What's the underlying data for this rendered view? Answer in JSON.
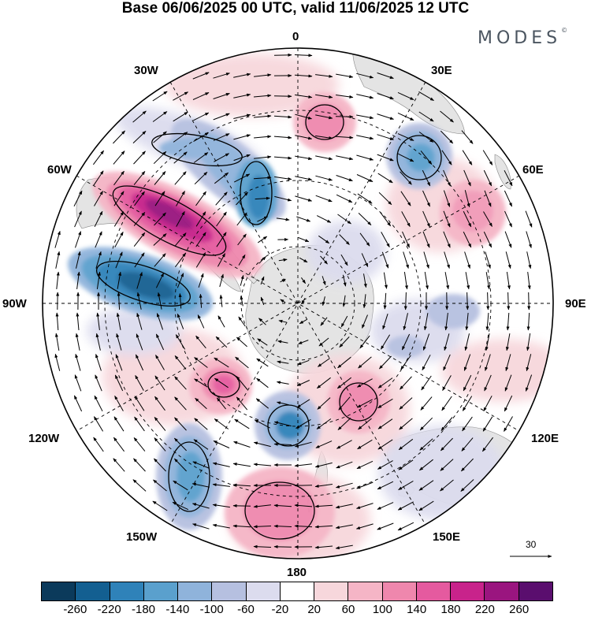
{
  "header": {
    "title": "Base 06/06/2025 00 UTC, valid 11/06/2025 12 UTC",
    "brand": "MODES",
    "brand_mark": "©"
  },
  "map": {
    "projection": "south-polar-stereographic",
    "longitude_labels": {
      "top": "0",
      "top_left": "30W",
      "top_right": "30E",
      "upper_left": "60W",
      "upper_right": "60E",
      "left": "90W",
      "right": "90E",
      "lower_left": "120W",
      "lower_right": "120E",
      "bottom_left": "150W",
      "bottom_right": "150E",
      "bottom": "180"
    },
    "reference_vector": "30",
    "colors": {
      "land": "#e6e6e6",
      "background": "#ffffff"
    }
  },
  "colorbar": {
    "ticks": [
      "-260",
      "-220",
      "-180",
      "-140",
      "-100",
      "-60",
      "-20",
      "20",
      "60",
      "100",
      "140",
      "180",
      "220",
      "260"
    ],
    "colors": [
      "#0b3a5b",
      "#135f91",
      "#2f82b9",
      "#5aa0cd",
      "#8fb3db",
      "#b6c0e0",
      "#dcdcee",
      "#ffffff",
      "#f7d7dc",
      "#f5b5c6",
      "#ef87ad",
      "#e55a9f",
      "#c8238b",
      "#9a157f",
      "#5a0e6e"
    ]
  }
}
